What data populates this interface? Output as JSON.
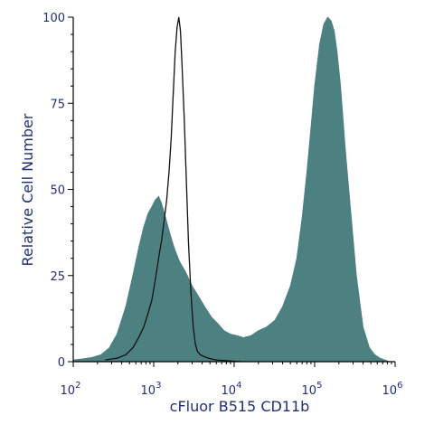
{
  "chart_data": {
    "type": "area",
    "xlabel": "cFluor B515 CD11b",
    "ylabel": "Relative Cell Number",
    "x_scale": "log",
    "xlim": [
      100,
      1000000
    ],
    "ylim": [
      0,
      100
    ],
    "x_ticks": [
      {
        "value": 100,
        "base": "10",
        "exp": "2"
      },
      {
        "value": 1000,
        "base": "10",
        "exp": "3"
      },
      {
        "value": 10000,
        "base": "10",
        "exp": "4"
      },
      {
        "value": 100000,
        "base": "10",
        "exp": "5"
      },
      {
        "value": 1000000,
        "base": "10",
        "exp": "6"
      }
    ],
    "y_ticks": [
      0,
      25,
      50,
      75,
      100
    ],
    "grid": false,
    "legend": "none",
    "series": [
      {
        "style": "filled",
        "color": "#4d8080",
        "x": [
          100,
          130,
          170,
          220,
          280,
          350,
          450,
          550,
          650,
          750,
          850,
          950,
          1050,
          1150,
          1250,
          1400,
          1600,
          1800,
          2100,
          2500,
          3000,
          3600,
          4300,
          5200,
          6300,
          7500,
          9000,
          11000,
          13000,
          16000,
          20000,
          25000,
          32000,
          40000,
          50000,
          60000,
          70000,
          80000,
          90000,
          100000,
          115000,
          130000,
          145000,
          160000,
          175000,
          190000,
          210000,
          240000,
          280000,
          330000,
          400000,
          480000,
          560000,
          650000,
          750000,
          850000
        ],
        "y": [
          0.5,
          0.8,
          1.2,
          2,
          4,
          8,
          16,
          25,
          33,
          39,
          43,
          45,
          47,
          48,
          46,
          42,
          37,
          33,
          29,
          26,
          22,
          19,
          16,
          13,
          11,
          9,
          8,
          7.5,
          7,
          7.5,
          9,
          10,
          12,
          16,
          22,
          30,
          42,
          55,
          68,
          80,
          92,
          98,
          100,
          99,
          96,
          90,
          80,
          62,
          44,
          25,
          10,
          4,
          2,
          1,
          0.5,
          0
        ]
      },
      {
        "style": "outline",
        "color": "#111111",
        "x": [
          250,
          350,
          450,
          550,
          650,
          750,
          850,
          950,
          1050,
          1150,
          1250,
          1350,
          1450,
          1550,
          1650,
          1750,
          1850,
          1950,
          2050,
          2150,
          2250,
          2400,
          2550,
          2700,
          2900,
          3100,
          3300,
          3500,
          3800,
          4200,
          4800,
          6000,
          8000,
          12000
        ],
        "y": [
          0.5,
          1,
          2,
          4,
          7,
          10,
          14,
          18,
          24,
          30,
          35,
          41,
          47,
          55,
          65,
          78,
          90,
          97,
          100,
          96,
          86,
          70,
          52,
          35,
          20,
          10,
          5,
          3,
          2,
          1.5,
          1,
          0.5,
          0.3,
          0
        ]
      }
    ]
  }
}
